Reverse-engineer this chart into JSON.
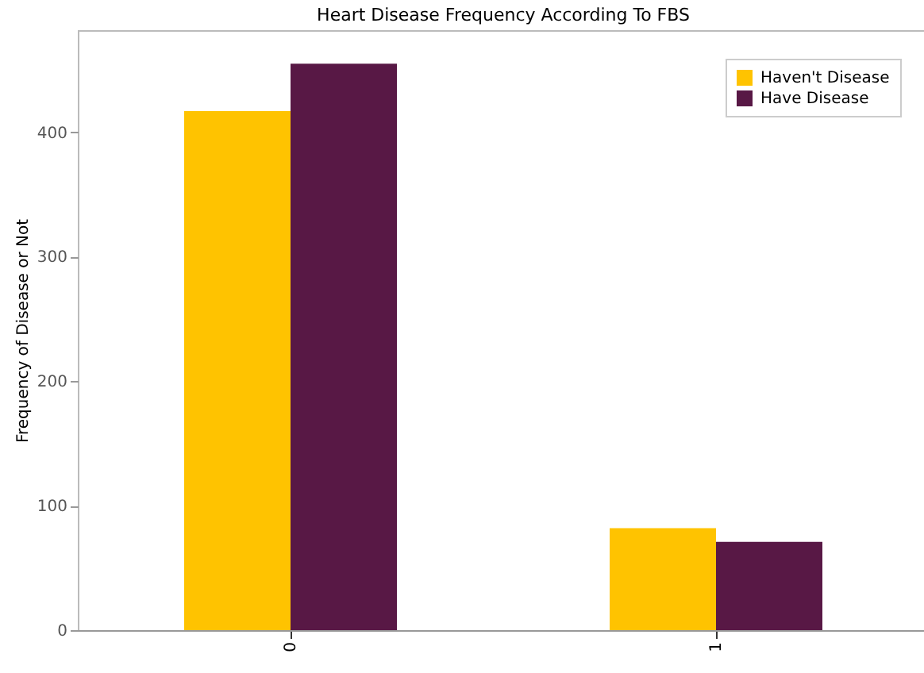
{
  "chart_data": {
    "type": "bar",
    "title": "Heart Disease Frequency According To FBS",
    "ylabel": "Frequency of Disease or Not",
    "categories": [
      "0",
      "1"
    ],
    "series": [
      {
        "name": "Haven't Disease",
        "color": "#ffc300",
        "values": [
          417,
          82
        ]
      },
      {
        "name": "Have Disease",
        "color": "#581845",
        "values": [
          455,
          71
        ]
      }
    ],
    "ylim": [
      0,
      482
    ],
    "yticks": [
      0,
      100,
      200,
      300,
      400
    ],
    "grid": false,
    "legend": "top right"
  }
}
